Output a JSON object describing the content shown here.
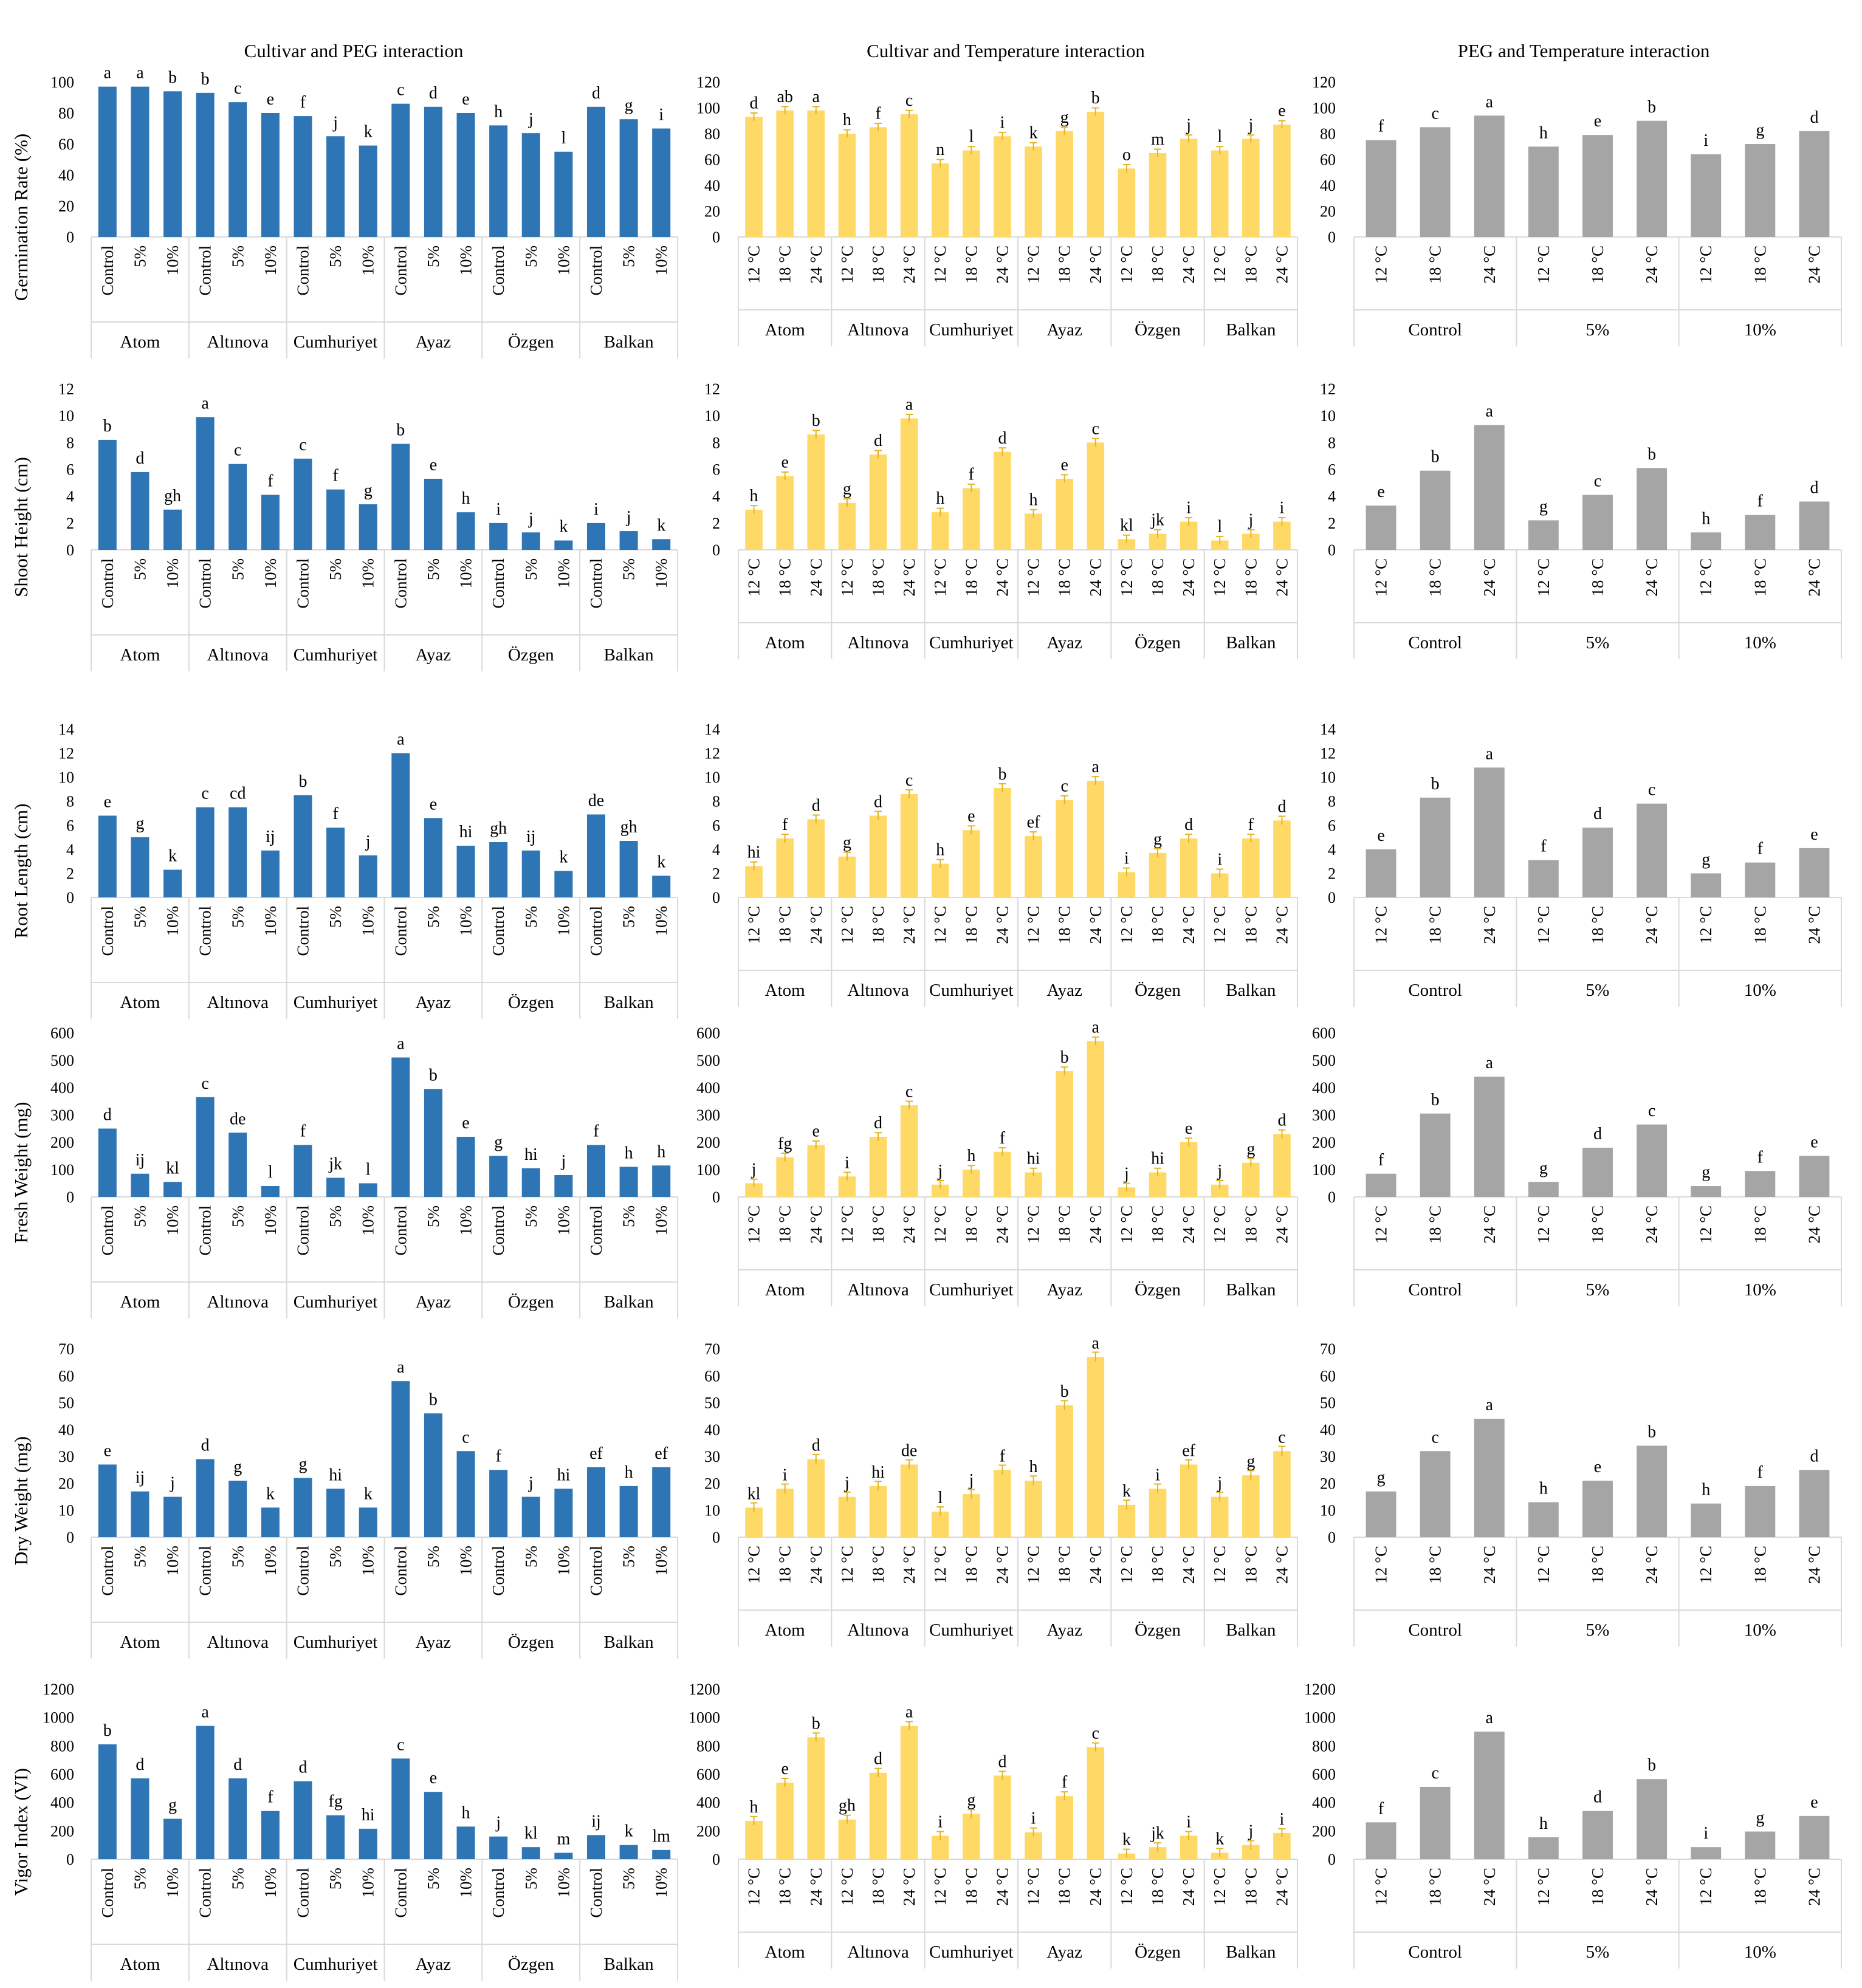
{
  "colors": {
    "peg_bar": "#2E75B6",
    "temp_bar": "#FFD966",
    "pegtemp_bar": "#A5A5A5",
    "error_bar": "#E4B520",
    "axis": "#D9D9D9",
    "text": "#000000"
  },
  "column_titles": [
    "Cultivar and PEG interaction",
    "Cultivar and Temperature interaction",
    "PEG and Temperature interaction"
  ],
  "row_labels": [
    "Germination Rate (%)",
    "Shoot Height (cm)",
    "Root Length (cm)",
    "Fresh Weight (mg)",
    "Dry Weight (mg)",
    "Vigor Index (VI)"
  ],
  "chart_data": [
    {
      "type": "bar",
      "row": 0,
      "col": 0,
      "ylabel": "Germination Rate (%)",
      "title": "Cultivar and PEG interaction",
      "ylim": [
        0,
        100
      ],
      "yticks": [
        0,
        20,
        40,
        60,
        80,
        100
      ],
      "groups": [
        "Atom",
        "Altınova",
        "Cumhuriyet",
        "Ayaz",
        "Özgen",
        "Balkan"
      ],
      "subcategories": [
        "Control",
        "5%",
        "10%"
      ],
      "values": [
        97,
        97,
        94,
        93,
        87,
        80,
        78,
        65,
        59,
        86,
        84,
        80,
        72,
        67,
        55,
        84,
        76,
        70
      ],
      "letters": [
        "a",
        "a",
        "b",
        "b",
        "c",
        "e",
        "f",
        "j",
        "k",
        "c",
        "d",
        "e",
        "h",
        "j",
        "l",
        "d",
        "g",
        "i"
      ]
    },
    {
      "type": "bar",
      "row": 0,
      "col": 1,
      "ylabel": "",
      "title": "Cultivar and Temperature interaction",
      "ylim": [
        0,
        120
      ],
      "yticks": [
        0,
        20,
        40,
        60,
        80,
        100,
        120
      ],
      "groups": [
        "Atom",
        "Altınova",
        "Cumhuriyet",
        "Ayaz",
        "Özgen",
        "Balkan"
      ],
      "subcategories": [
        "12 °C",
        "18 °C",
        "24 °C"
      ],
      "values": [
        93,
        98,
        98,
        80,
        85,
        95,
        57,
        67,
        78,
        70,
        82,
        97,
        53,
        65,
        76,
        67,
        76,
        87
      ],
      "letters": [
        "d",
        "ab",
        "a",
        "h",
        "f",
        "c",
        "n",
        "l",
        "i",
        "k",
        "g",
        "b",
        "o",
        "m",
        "j",
        "l",
        "j",
        "e"
      ]
    },
    {
      "type": "bar",
      "row": 0,
      "col": 2,
      "ylabel": "",
      "title": "PEG and Temperature interaction",
      "ylim": [
        0,
        120
      ],
      "yticks": [
        0,
        20,
        40,
        60,
        80,
        100,
        120
      ],
      "groups": [
        "Control",
        "5%",
        "10%"
      ],
      "subcategories": [
        "12 °C",
        "18 °C",
        "24 °C"
      ],
      "values": [
        75,
        85,
        94,
        70,
        79,
        90,
        64,
        72,
        82
      ],
      "letters": [
        "f",
        "c",
        "a",
        "h",
        "e",
        "b",
        "i",
        "g",
        "d"
      ]
    },
    {
      "type": "bar",
      "row": 1,
      "col": 0,
      "ylabel": "Shoot Height (cm)",
      "ylim": [
        0,
        12
      ],
      "yticks": [
        0,
        2,
        4,
        6,
        8,
        10,
        12
      ],
      "groups": [
        "Atom",
        "Altınova",
        "Cumhuriyet",
        "Ayaz",
        "Özgen",
        "Balkan"
      ],
      "subcategories": [
        "Control",
        "5%",
        "10%"
      ],
      "values": [
        8.2,
        5.8,
        3.0,
        9.9,
        6.4,
        4.1,
        6.8,
        4.5,
        3.4,
        7.9,
        5.3,
        2.8,
        2.0,
        1.3,
        0.7,
        2.0,
        1.4,
        0.8
      ],
      "letters": [
        "b",
        "d",
        "gh",
        "a",
        "c",
        "f",
        "c",
        "f",
        "g",
        "b",
        "e",
        "h",
        "i",
        "j",
        "k",
        "i",
        "j",
        "k"
      ]
    },
    {
      "type": "bar",
      "row": 1,
      "col": 1,
      "ylabel": "",
      "ylim": [
        0,
        12
      ],
      "yticks": [
        0,
        2,
        4,
        6,
        8,
        10,
        12
      ],
      "groups": [
        "Atom",
        "Altınova",
        "Cumhuriyet",
        "Ayaz",
        "Özgen",
        "Balkan"
      ],
      "subcategories": [
        "12 °C",
        "18 °C",
        "24 °C"
      ],
      "values": [
        3.0,
        5.5,
        8.6,
        3.5,
        7.1,
        9.8,
        2.8,
        4.6,
        7.3,
        2.7,
        5.3,
        8.0,
        0.8,
        1.2,
        2.1,
        0.7,
        1.2,
        2.1
      ],
      "letters": [
        "h",
        "e",
        "b",
        "g",
        "d",
        "a",
        "h",
        "f",
        "d",
        "h",
        "e",
        "c",
        "kl",
        "jk",
        "i",
        "l",
        "j",
        "i"
      ]
    },
    {
      "type": "bar",
      "row": 1,
      "col": 2,
      "ylabel": "",
      "ylim": [
        0,
        12
      ],
      "yticks": [
        0,
        2,
        4,
        6,
        8,
        10,
        12
      ],
      "groups": [
        "Control",
        "5%",
        "10%"
      ],
      "subcategories": [
        "12 °C",
        "18 °C",
        "24 °C"
      ],
      "values": [
        3.3,
        5.9,
        9.3,
        2.2,
        4.1,
        6.1,
        1.3,
        2.6,
        3.6
      ],
      "letters": [
        "e",
        "b",
        "a",
        "g",
        "c",
        "b",
        "h",
        "f",
        "d"
      ]
    },
    {
      "type": "bar",
      "row": 2,
      "col": 0,
      "ylabel": "Root Length (cm)",
      "ylim": [
        0,
        14
      ],
      "yticks": [
        0,
        2,
        4,
        6,
        8,
        10,
        12,
        14
      ],
      "groups": [
        "Atom",
        "Altınova",
        "Cumhuriyet",
        "Ayaz",
        "Özgen",
        "Balkan"
      ],
      "subcategories": [
        "Control",
        "5%",
        "10%"
      ],
      "values": [
        6.8,
        5.0,
        2.3,
        7.5,
        7.5,
        3.9,
        8.5,
        5.8,
        3.5,
        12.0,
        6.6,
        4.3,
        4.6,
        3.9,
        2.2,
        6.9,
        4.7,
        1.8
      ],
      "letters": [
        "e",
        "g",
        "k",
        "c",
        "cd",
        "ij",
        "b",
        "f",
        "j",
        "a",
        "e",
        "hi",
        "gh",
        "ij",
        "k",
        "de",
        "gh",
        "k"
      ]
    },
    {
      "type": "bar",
      "row": 2,
      "col": 1,
      "ylabel": "",
      "ylim": [
        0,
        14
      ],
      "yticks": [
        0,
        2,
        4,
        6,
        8,
        10,
        12,
        14
      ],
      "groups": [
        "Atom",
        "Altınova",
        "Cumhuriyet",
        "Ayaz",
        "Özgen",
        "Balkan"
      ],
      "subcategories": [
        "12 °C",
        "18 °C",
        "24 °C"
      ],
      "values": [
        2.6,
        4.9,
        6.5,
        3.4,
        6.8,
        8.6,
        2.8,
        5.6,
        9.1,
        5.1,
        8.1,
        9.7,
        2.1,
        3.7,
        4.9,
        2.0,
        4.9,
        6.4
      ],
      "letters": [
        "hi",
        "f",
        "d",
        "g",
        "d",
        "c",
        "h",
        "e",
        "b",
        "ef",
        "c",
        "a",
        "i",
        "g",
        "d",
        "i",
        "f",
        "d"
      ]
    },
    {
      "type": "bar",
      "row": 2,
      "col": 2,
      "ylabel": "",
      "ylim": [
        0,
        14
      ],
      "yticks": [
        0,
        2,
        4,
        6,
        8,
        10,
        12,
        14
      ],
      "groups": [
        "Control",
        "5%",
        "10%"
      ],
      "subcategories": [
        "12 °C",
        "18 °C",
        "24 °C"
      ],
      "values": [
        4.0,
        8.3,
        10.8,
        3.1,
        5.8,
        7.8,
        2.0,
        2.9,
        4.1
      ],
      "letters": [
        "e",
        "b",
        "a",
        "f",
        "d",
        "c",
        "g",
        "f",
        "e"
      ]
    },
    {
      "type": "bar",
      "row": 3,
      "col": 0,
      "ylabel": "Fresh Weight (mg)",
      "ylim": [
        0,
        600
      ],
      "yticks": [
        0,
        100,
        200,
        300,
        400,
        500,
        600
      ],
      "groups": [
        "Atom",
        "Altınova",
        "Cumhuriyet",
        "Ayaz",
        "Özgen",
        "Balkan"
      ],
      "subcategories": [
        "Control",
        "5%",
        "10%"
      ],
      "values": [
        250,
        85,
        55,
        365,
        235,
        40,
        190,
        70,
        50,
        510,
        395,
        220,
        150,
        105,
        80,
        190,
        110,
        115
      ],
      "letters": [
        "d",
        "ij",
        "kl",
        "c",
        "de",
        "l",
        "f",
        "jk",
        "l",
        "a",
        "b",
        "e",
        "g",
        "hi",
        "j",
        "f",
        "h",
        "h"
      ]
    },
    {
      "type": "bar",
      "row": 3,
      "col": 1,
      "ylabel": "",
      "ylim": [
        0,
        600
      ],
      "yticks": [
        0,
        100,
        200,
        300,
        400,
        500,
        600
      ],
      "groups": [
        "Atom",
        "Altınova",
        "Cumhuriyet",
        "Ayaz",
        "Özgen",
        "Balkan"
      ],
      "subcategories": [
        "12 °C",
        "18 °C",
        "24 °C"
      ],
      "values": [
        50,
        145,
        190,
        75,
        220,
        335,
        45,
        100,
        165,
        90,
        460,
        570,
        35,
        90,
        200,
        45,
        125,
        230
      ],
      "letters": [
        "j",
        "fg",
        "e",
        "i",
        "d",
        "c",
        "j",
        "h",
        "f",
        "hi",
        "b",
        "a",
        "j",
        "hi",
        "e",
        "j",
        "g",
        "d"
      ]
    },
    {
      "type": "bar",
      "row": 3,
      "col": 2,
      "ylabel": "",
      "ylim": [
        0,
        600
      ],
      "yticks": [
        0,
        100,
        200,
        300,
        400,
        500,
        600
      ],
      "groups": [
        "Control",
        "5%",
        "10%"
      ],
      "subcategories": [
        "12 °C",
        "18 °C",
        "24 °C"
      ],
      "values": [
        85,
        305,
        440,
        55,
        180,
        265,
        40,
        95,
        150
      ],
      "letters": [
        "f",
        "b",
        "a",
        "g",
        "d",
        "c",
        "g",
        "f",
        "e"
      ]
    },
    {
      "type": "bar",
      "row": 4,
      "col": 0,
      "ylabel": "Dry Weight (mg)",
      "ylim": [
        0,
        70
      ],
      "yticks": [
        0,
        10,
        20,
        30,
        40,
        50,
        60,
        70
      ],
      "groups": [
        "Atom",
        "Altınova",
        "Cumhuriyet",
        "Ayaz",
        "Özgen",
        "Balkan"
      ],
      "subcategories": [
        "Control",
        "5%",
        "10%"
      ],
      "values": [
        27,
        17,
        15,
        29,
        21,
        11,
        22,
        18,
        11,
        58,
        46,
        32,
        25,
        15,
        18,
        26,
        19,
        26
      ],
      "letters": [
        "e",
        "ij",
        "j",
        "d",
        "g",
        "k",
        "g",
        "hi",
        "k",
        "a",
        "b",
        "c",
        "f",
        "j",
        "hi",
        "ef",
        "h",
        "ef"
      ]
    },
    {
      "type": "bar",
      "row": 4,
      "col": 1,
      "ylabel": "",
      "ylim": [
        0,
        70
      ],
      "yticks": [
        0,
        10,
        20,
        30,
        40,
        50,
        60,
        70
      ],
      "groups": [
        "Atom",
        "Altınova",
        "Cumhuriyet",
        "Ayaz",
        "Özgen",
        "Balkan"
      ],
      "subcategories": [
        "12 °C",
        "18 °C",
        "24 °C"
      ],
      "values": [
        11,
        18,
        29,
        15,
        19,
        27,
        9.5,
        16,
        25,
        21,
        49,
        67,
        12,
        18,
        27,
        15,
        23,
        32
      ],
      "letters": [
        "kl",
        "i",
        "d",
        "j",
        "hi",
        "de",
        "l",
        "j",
        "f",
        "h",
        "b",
        "a",
        "k",
        "i",
        "ef",
        "j",
        "g",
        "c"
      ]
    },
    {
      "type": "bar",
      "row": 4,
      "col": 2,
      "ylabel": "",
      "ylim": [
        0,
        70
      ],
      "yticks": [
        0,
        10,
        20,
        30,
        40,
        50,
        60,
        70
      ],
      "groups": [
        "Control",
        "5%",
        "10%"
      ],
      "subcategories": [
        "12 °C",
        "18 °C",
        "24 °C"
      ],
      "values": [
        17,
        32,
        44,
        13,
        21,
        34,
        12.5,
        19,
        25
      ],
      "letters": [
        "g",
        "c",
        "a",
        "h",
        "e",
        "b",
        "h",
        "f",
        "d"
      ]
    },
    {
      "type": "bar",
      "row": 5,
      "col": 0,
      "ylabel": "Vigor Index (VI)",
      "ylim": [
        0,
        1200
      ],
      "yticks": [
        0,
        200,
        400,
        600,
        800,
        1000,
        1200
      ],
      "groups": [
        "Atom",
        "Altınova",
        "Cumhuriyet",
        "Ayaz",
        "Özgen",
        "Balkan"
      ],
      "subcategories": [
        "Control",
        "5%",
        "10%"
      ],
      "values": [
        810,
        570,
        285,
        940,
        570,
        340,
        550,
        310,
        215,
        710,
        475,
        230,
        160,
        85,
        45,
        170,
        100,
        65
      ],
      "letters": [
        "b",
        "d",
        "g",
        "a",
        "d",
        "f",
        "d",
        "fg",
        "hi",
        "c",
        "e",
        "h",
        "j",
        "kl",
        "m",
        "ij",
        "k",
        "lm"
      ]
    },
    {
      "type": "bar",
      "row": 5,
      "col": 1,
      "ylabel": "",
      "ylim": [
        0,
        1200
      ],
      "yticks": [
        0,
        200,
        400,
        600,
        800,
        1000,
        1200
      ],
      "groups": [
        "Atom",
        "Altınova",
        "Cumhuriyet",
        "Ayaz",
        "Özgen",
        "Balkan"
      ],
      "subcategories": [
        "12 °C",
        "18 °C",
        "24 °C"
      ],
      "values": [
        270,
        540,
        860,
        280,
        610,
        940,
        165,
        320,
        590,
        190,
        445,
        790,
        40,
        85,
        165,
        45,
        100,
        185
      ],
      "letters": [
        "h",
        "e",
        "b",
        "gh",
        "d",
        "a",
        "i",
        "g",
        "d",
        "i",
        "f",
        "c",
        "k",
        "jk",
        "i",
        "k",
        "j",
        "i"
      ]
    },
    {
      "type": "bar",
      "row": 5,
      "col": 2,
      "ylabel": "",
      "ylim": [
        0,
        1200
      ],
      "yticks": [
        0,
        200,
        400,
        600,
        800,
        1000,
        1200
      ],
      "groups": [
        "Control",
        "5%",
        "10%"
      ],
      "subcategories": [
        "12 °C",
        "18 °C",
        "24 °C"
      ],
      "values": [
        260,
        510,
        900,
        155,
        340,
        565,
        85,
        195,
        305
      ],
      "letters": [
        "f",
        "c",
        "a",
        "h",
        "d",
        "b",
        "i",
        "g",
        "e"
      ]
    }
  ]
}
